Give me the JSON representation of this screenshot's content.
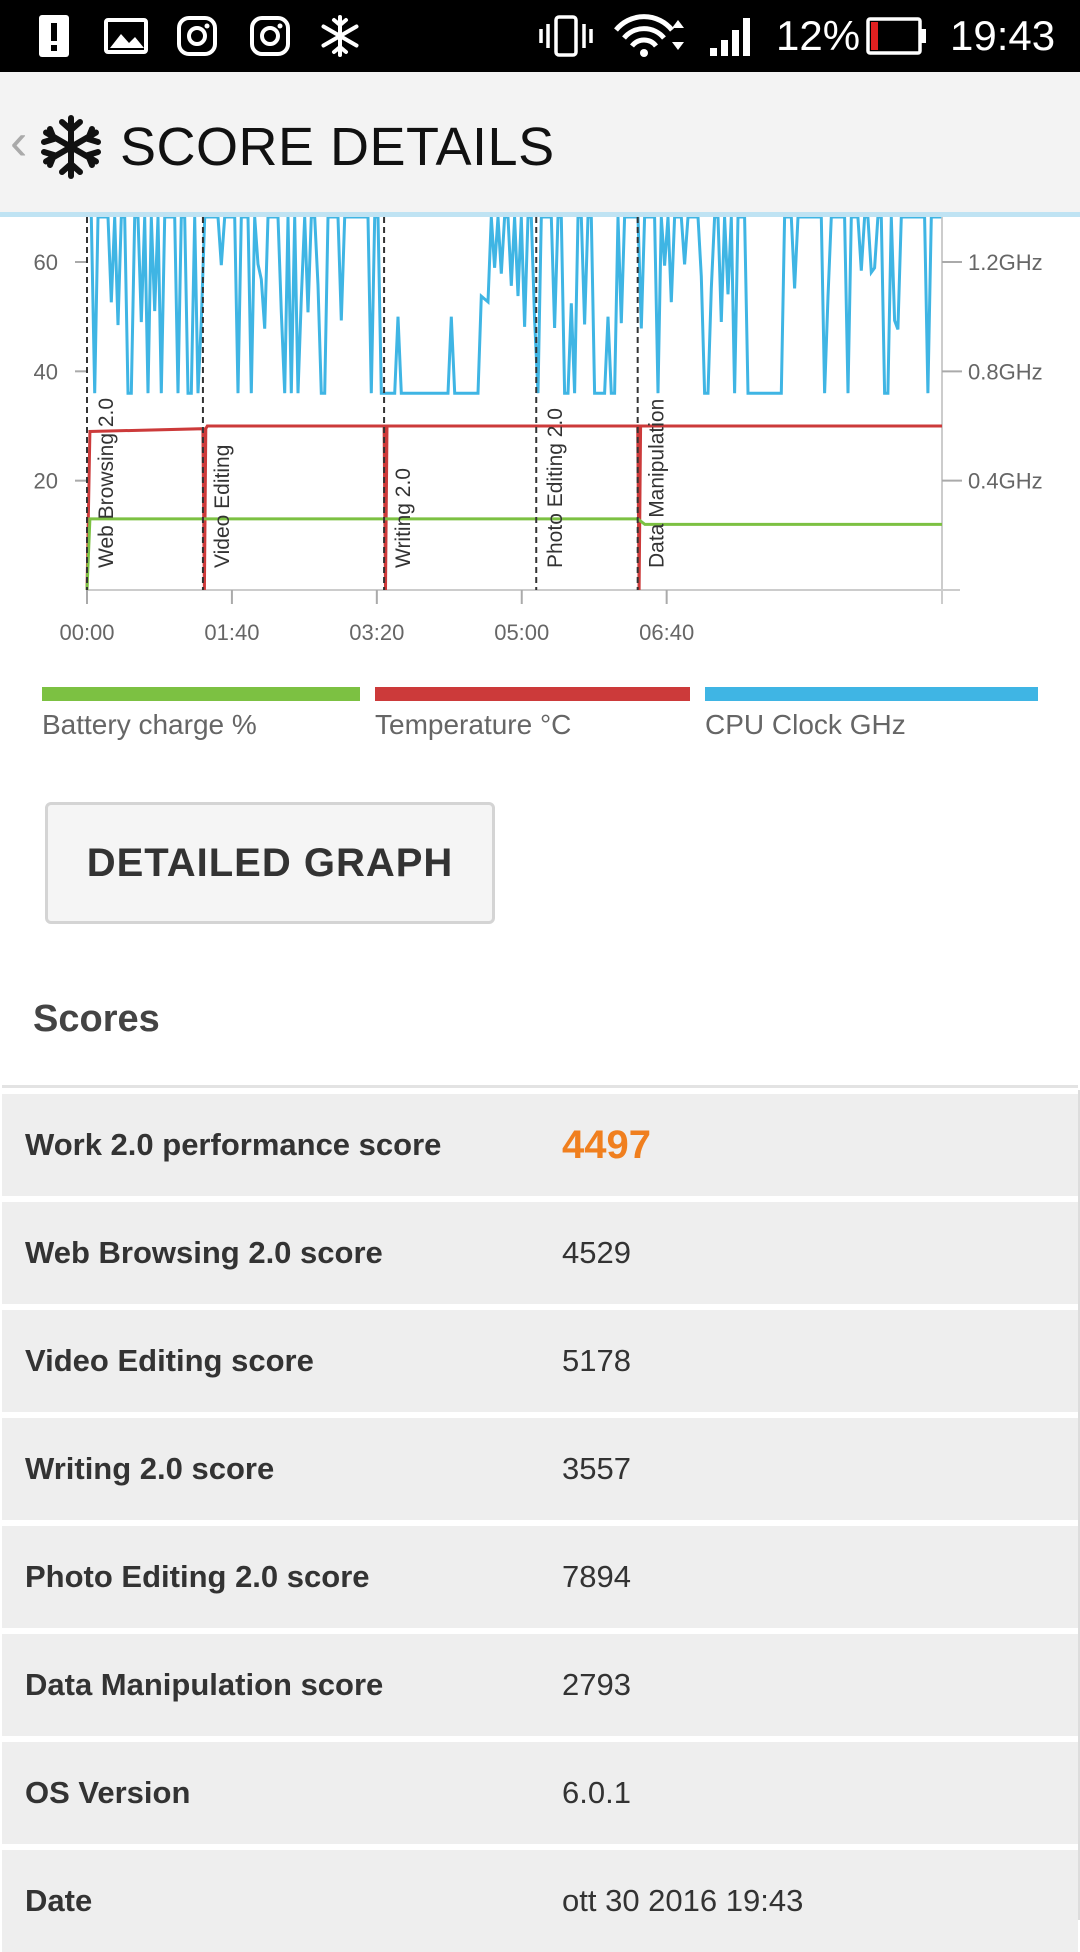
{
  "status_bar": {
    "battery_percent": "12%",
    "time": "19:43",
    "icons": [
      "alert-icon",
      "image-icon",
      "instagram-icon",
      "instagram-icon",
      "snowflake-icon",
      "vibrate-icon",
      "wifi-icon",
      "signal-icon",
      "battery-icon"
    ]
  },
  "header": {
    "back_glyph": "‹",
    "title": "SCORE DETAILS"
  },
  "chart_data": {
    "type": "line",
    "x_ticks": [
      "00:00",
      "01:40",
      "03:20",
      "05:00",
      "06:40"
    ],
    "x_range_seconds": [
      0,
      590
    ],
    "y_left_ticks": [
      20,
      40,
      60
    ],
    "y_left_range": [
      0,
      60
    ],
    "y_right_ticks": [
      "0.4GHz",
      "0.8GHz",
      "1.2GHz"
    ],
    "y_right_range_ghz": [
      0,
      1.2
    ],
    "segments": [
      {
        "label": "Web Browsing 2.0",
        "start": 0
      },
      {
        "label": "Video Editing",
        "start": 80
      },
      {
        "label": "Writing 2.0",
        "start": 205
      },
      {
        "label": "Photo Editing 2.0",
        "start": 310
      },
      {
        "label": "Data Manipulation",
        "start": 380
      }
    ],
    "series": [
      {
        "name": "Battery charge %",
        "color": "#7cc142",
        "x": [
          0,
          2,
          380,
          385,
          590
        ],
        "y": [
          0,
          13,
          13,
          12,
          12
        ]
      },
      {
        "name": "Temperature °C",
        "color": "#cc3a3a",
        "x": [
          0,
          2,
          80,
          81,
          82,
          83,
          205,
          206,
          207,
          208,
          380,
          381,
          382,
          383,
          590
        ],
        "y": [
          0,
          29,
          29.5,
          0,
          29.5,
          30,
          30,
          0,
          30,
          30,
          30,
          0,
          30,
          30,
          30
        ]
      },
      {
        "name": "CPU Clock GHz",
        "color": "#3fb5e4",
        "pattern": "rapidly oscillating between ~0.7 GHz and >1.2 GHz, idle ~0.7 GHz gaps around 03:20-04:20 and 06:00-06:40"
      }
    ]
  },
  "legend": [
    {
      "label": "Battery charge %",
      "color": "#7cc142"
    },
    {
      "label": "Temperature °C",
      "color": "#cc3a3a"
    },
    {
      "label": "CPU Clock GHz",
      "color": "#3fb5e4"
    }
  ],
  "detailed_graph_button": "DETAILED GRAPH",
  "scores_section": {
    "title": "Scores",
    "rows": [
      {
        "label": "Work 2.0 performance score",
        "value": "4497"
      },
      {
        "label": "Web Browsing 2.0 score",
        "value": "4529"
      },
      {
        "label": "Video Editing score",
        "value": "5178"
      },
      {
        "label": "Writing 2.0 score",
        "value": "3557"
      },
      {
        "label": "Photo Editing 2.0 score",
        "value": "7894"
      },
      {
        "label": "Data Manipulation score",
        "value": "2793"
      },
      {
        "label": "OS Version",
        "value": "6.0.1"
      },
      {
        "label": "Date",
        "value": "ott 30 2016 19:43"
      }
    ]
  },
  "colors": {
    "accent_orange": "#f07f1e",
    "header_bg": "#f3f3f3",
    "row_bg": "#eeeeee"
  }
}
